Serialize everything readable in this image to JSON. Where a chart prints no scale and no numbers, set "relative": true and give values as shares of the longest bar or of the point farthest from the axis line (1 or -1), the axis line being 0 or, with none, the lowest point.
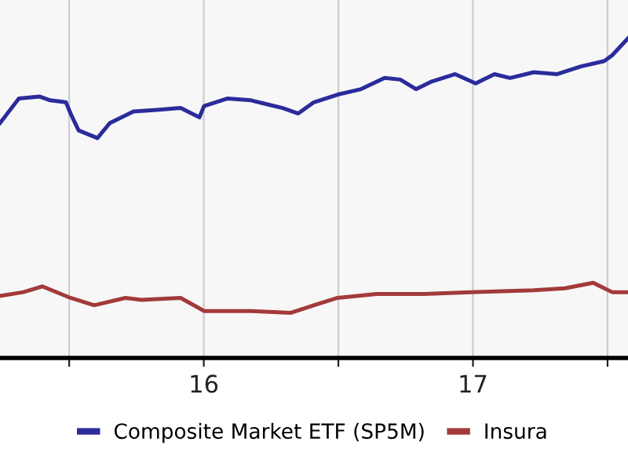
{
  "chart_data": {
    "type": "line",
    "relative": true,
    "x": [
      15.243,
      15.313,
      15.389,
      15.43,
      15.488,
      15.505,
      15.535,
      15.605,
      15.651,
      15.739,
      15.826,
      15.914,
      15.984,
      16.001,
      16.089,
      16.176,
      16.234,
      16.293,
      16.351,
      16.409,
      16.497,
      16.584,
      16.672,
      16.73,
      16.789,
      16.847,
      16.934,
      17.01,
      17.08,
      17.138,
      17.226,
      17.313,
      17.401,
      17.488,
      17.517,
      17.576
    ],
    "series": [
      {
        "name": "Composite Market ETF (SP5M)",
        "color": "#2b2b9c",
        "values": [
          0.735,
          0.812,
          0.818,
          0.806,
          0.8,
          0.765,
          0.712,
          0.688,
          0.735,
          0.771,
          0.776,
          0.782,
          0.753,
          0.788,
          0.812,
          0.806,
          0.794,
          0.782,
          0.765,
          0.8,
          0.824,
          0.841,
          0.876,
          0.871,
          0.841,
          0.865,
          0.888,
          0.859,
          0.888,
          0.876,
          0.894,
          0.888,
          0.912,
          0.929,
          0.947,
          1
        ]
      },
      {
        "name": "Insura",
        "color": "#a33a3a",
        "x": [
          15.243,
          15.33,
          15.4,
          15.505,
          15.593,
          15.709,
          15.768,
          15.914,
          16.001,
          16.176,
          16.322,
          16.409,
          16.497,
          16.642,
          16.817,
          16.992,
          17.226,
          17.342,
          17.447,
          17.517,
          17.576
        ],
        "values": [
          0.194,
          0.206,
          0.224,
          0.188,
          0.165,
          0.188,
          0.182,
          0.188,
          0.147,
          0.147,
          0.141,
          0.165,
          0.188,
          0.2,
          0.2,
          0.206,
          0.212,
          0.218,
          0.235,
          0.206,
          0.206
        ]
      }
    ],
    "xlim": [
      15.243,
      17.576
    ],
    "xticks": [
      {
        "value": 15.5,
        "label": null
      },
      16,
      {
        "value": 16.5,
        "label": null
      },
      17,
      {
        "value": 17.5,
        "label": null
      }
    ],
    "tick_labels": "x",
    "grid": "x",
    "legend": "bottom",
    "line_style": "solid",
    "marker": "none"
  }
}
